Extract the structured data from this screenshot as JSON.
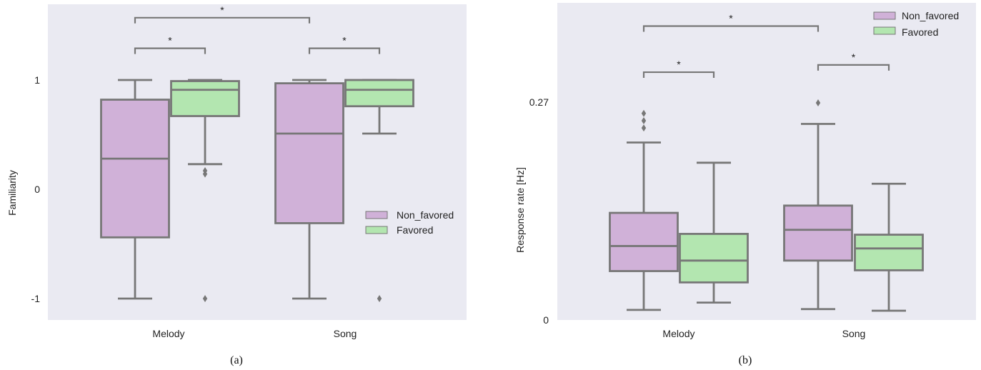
{
  "colors": {
    "background": "#eaeaf2",
    "box_edge": "#777777",
    "non_favored": "#d0b1d8",
    "favored": "#b3e6b0"
  },
  "chart_data": [
    {
      "type": "box",
      "caption": "(a)",
      "xlabel": "",
      "ylabel": "Familiarity",
      "ylim": [
        -1.2,
        1.5
      ],
      "yticks": [
        1,
        0,
        -1
      ],
      "ytick_labels": [
        "1",
        "0",
        "-1"
      ],
      "categories": [
        "Melody",
        "Song"
      ],
      "legend": {
        "placement": "center-right",
        "entries": [
          "Non_favored",
          "Favored"
        ]
      },
      "series": [
        {
          "name": "Non_favored",
          "color": "#d0b1d8",
          "boxes": [
            {
              "category": "Melody",
              "whisker_low": -1.0,
              "q1": -0.44,
              "median": 0.28,
              "q3": 0.82,
              "whisker_high": 1.0,
              "outliers": []
            },
            {
              "category": "Song",
              "whisker_low": -1.0,
              "q1": -0.31,
              "median": 0.51,
              "q3": 0.97,
              "whisker_high": 1.0,
              "outliers": []
            }
          ]
        },
        {
          "name": "Favored",
          "color": "#b3e6b0",
          "boxes": [
            {
              "category": "Melody",
              "whisker_low": 0.23,
              "q1": 0.67,
              "median": 0.91,
              "q3": 0.99,
              "whisker_high": 1.0,
              "outliers": [
                0.17,
                0.14,
                -1.0
              ]
            },
            {
              "category": "Song",
              "whisker_low": 0.51,
              "q1": 0.76,
              "median": 0.91,
              "q3": 1.0,
              "whisker_high": 1.0,
              "outliers": [
                -1.0
              ]
            }
          ]
        }
      ],
      "significance": [
        {
          "label": "*",
          "from": "Melody",
          "to": "Song",
          "level": 1.57
        },
        {
          "label": "*",
          "from": "Melody.Non_favored",
          "to": "Melody.Favored",
          "level": 1.29
        },
        {
          "label": "*",
          "from": "Song.Non_favored",
          "to": "Song.Favored",
          "level": 1.29
        }
      ]
    },
    {
      "type": "box",
      "caption": "(b)",
      "xlabel": "",
      "ylabel": "Response rate [Hz]",
      "ylim": [
        0,
        0.39
      ],
      "yticks": [
        0.27,
        0
      ],
      "ytick_labels": [
        "0.27",
        "0"
      ],
      "categories": [
        "Melody",
        "Song"
      ],
      "legend": {
        "placement": "top-right",
        "entries": [
          "Non_favored",
          "Favored"
        ]
      },
      "series": [
        {
          "name": "Non_favored",
          "color": "#d0b1d8",
          "boxes": [
            {
              "category": "Melody",
              "whisker_low": 0.0125,
              "q1": 0.0605,
              "median": 0.0915,
              "q3": 0.1325,
              "whisker_high": 0.2195,
              "outliers": [
                0.2375,
                0.2465,
                0.2555
              ]
            },
            {
              "category": "Song",
              "whisker_low": 0.0135,
              "q1": 0.0735,
              "median": 0.1115,
              "q3": 0.1415,
              "whisker_high": 0.2425,
              "outliers": [
                0.2685
              ]
            }
          ]
        },
        {
          "name": "Favored",
          "color": "#b3e6b0",
          "boxes": [
            {
              "category": "Melody",
              "whisker_low": 0.0215,
              "q1": 0.0465,
              "median": 0.0735,
              "q3": 0.1065,
              "whisker_high": 0.1945,
              "outliers": []
            },
            {
              "category": "Song",
              "whisker_low": 0.0115,
              "q1": 0.0615,
              "median": 0.0885,
              "q3": 0.1055,
              "whisker_high": 0.1685,
              "outliers": []
            }
          ]
        }
      ],
      "significance": [
        {
          "label": "*",
          "from": "Melody",
          "to": "Song",
          "level": 0.3635
        },
        {
          "label": "*",
          "from": "Melody.Non_favored",
          "to": "Melody.Favored",
          "level": 0.3065
        },
        {
          "label": "*",
          "from": "Song.Non_favored",
          "to": "Song.Favored",
          "level": 0.3155
        }
      ]
    }
  ]
}
